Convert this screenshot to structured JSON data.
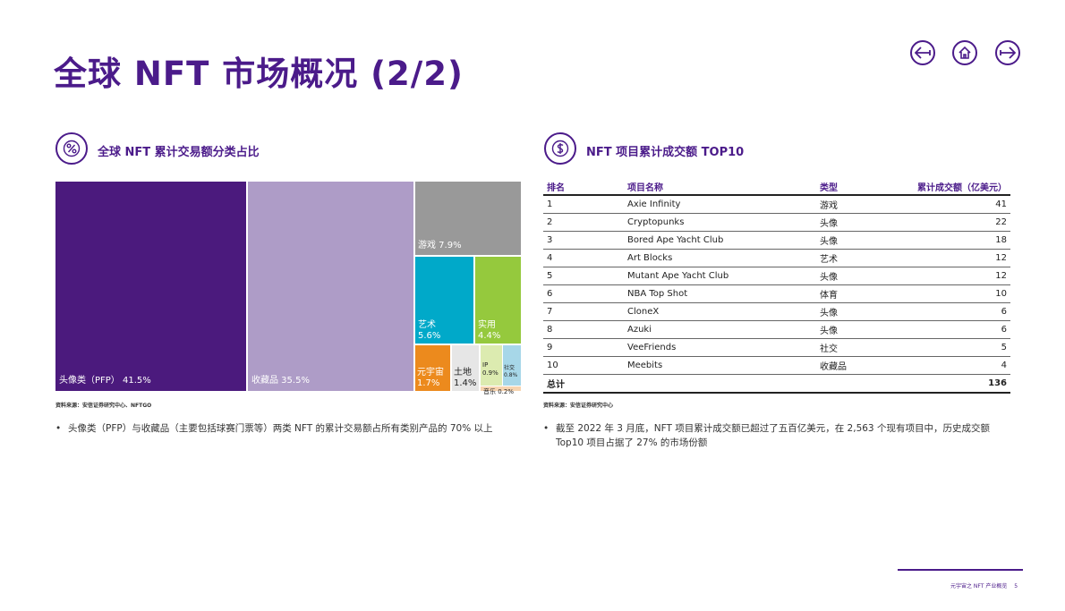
{
  "title": "全球 NFT 市场概况 (2/2)",
  "nav": {
    "prev_icon": "arrow-left-icon",
    "home_icon": "home-icon",
    "next_icon": "arrow-right-icon"
  },
  "left_section": {
    "icon": "percent-icon",
    "heading": "全球 NFT 累计交易额分类占比",
    "source": "资料来源：安信证券研究中心、NFTGO",
    "bullet": "头像类（PFP）与收藏品（主要包括球赛门票等）两类 NFT 的累计交易额占所有类别产品的 70% 以上"
  },
  "chart_data": {
    "type": "treemap",
    "items": [
      {
        "label": "头像类（PFP）",
        "pct": "41.5%",
        "value": 41.5,
        "color": "#4b1a7d"
      },
      {
        "label": "收藏品",
        "pct": "35.5%",
        "value": 35.5,
        "color": "#ae9cc7"
      },
      {
        "label": "游戏",
        "pct": "7.9%",
        "value": 7.9,
        "color": "#999999"
      },
      {
        "label": "艺术",
        "pct": "5.6%",
        "value": 5.6,
        "color": "#00a9c9"
      },
      {
        "label": "实用",
        "pct": "4.4%",
        "value": 4.4,
        "color": "#95c93d"
      },
      {
        "label": "元宇宙",
        "pct": "1.7%",
        "value": 1.7,
        "color": "#ec8a1d"
      },
      {
        "label": "土地",
        "pct": "1.4%",
        "value": 1.4,
        "color": "#e6e6e6"
      },
      {
        "label": "IP",
        "pct": "0.9%",
        "value": 0.9,
        "color": "#dcebb0"
      },
      {
        "label": "社交",
        "pct": "0.8%",
        "value": 0.8,
        "color": "#a7d7e8"
      },
      {
        "label": "音乐",
        "pct": "0.2%",
        "value": 0.2,
        "color": "#f7d4b0"
      }
    ]
  },
  "right_section": {
    "icon": "dollar-icon",
    "heading": "NFT 项目累计成交额 TOP10",
    "source": "资料来源：安信证券研究中心",
    "bullet": "截至 2022 年 3 月底，NFT 项目累计成交额已超过了五百亿美元，在 2,563 个现有项目中，历史成交额 Top10 项目占据了 27% 的市场份额"
  },
  "table": {
    "headers": [
      "排名",
      "项目名称",
      "类型",
      "累计成交额（亿美元）"
    ],
    "rows": [
      [
        "1",
        "Axie Infinity",
        "游戏",
        "41"
      ],
      [
        "2",
        "Cryptopunks",
        "头像",
        "22"
      ],
      [
        "3",
        "Bored Ape Yacht Club",
        "头像",
        "18"
      ],
      [
        "4",
        "Art Blocks",
        "艺术",
        "12"
      ],
      [
        "5",
        "Mutant Ape Yacht Club",
        "头像",
        "12"
      ],
      [
        "6",
        "NBA Top Shot",
        "体育",
        "10"
      ],
      [
        "7",
        "CloneX",
        "头像",
        "6"
      ],
      [
        "8",
        "Azuki",
        "头像",
        "6"
      ],
      [
        "9",
        "VeeFriends",
        "社交",
        "5"
      ],
      [
        "10",
        "Meebits",
        "收藏品",
        "4"
      ]
    ],
    "total_label": "总计",
    "total_value": "136"
  },
  "footer": {
    "text": "元宇宙之 NFT 产业概览",
    "page": "5"
  }
}
